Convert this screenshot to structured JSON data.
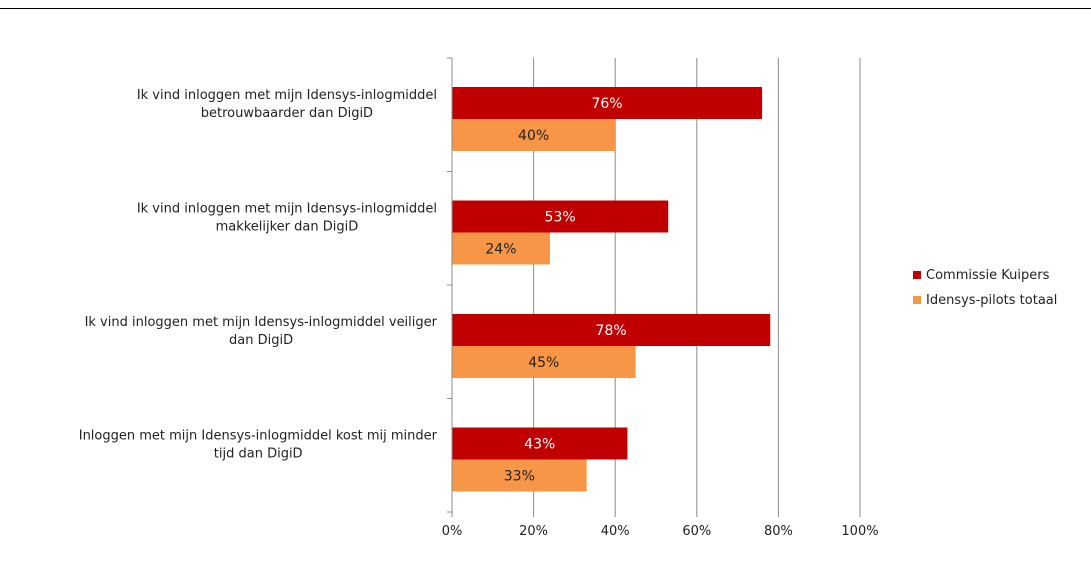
{
  "chart_data": {
    "type": "bar",
    "orientation": "horizontal",
    "categories": [
      [
        "Ik vind inloggen met mijn Idensys-inlogmiddel",
        "betrouwbaarder dan DigiD"
      ],
      [
        "Ik vind inloggen met mijn Idensys-inlogmiddel",
        "makkelijker dan DigiD"
      ],
      [
        "Ik vind inloggen met mijn Idensys-inlogmiddel veiliger",
        "dan DigiD"
      ],
      [
        "Inloggen met mijn Idensys-inlogmiddel kost mij minder",
        "tijd dan DigiD"
      ]
    ],
    "series": [
      {
        "name": "Commissie Kuipers",
        "color": "#c00000",
        "label_color": "#ffffff",
        "values": [
          76,
          53,
          78,
          43
        ],
        "labels": [
          "76%",
          "53%",
          "78%",
          "43%"
        ]
      },
      {
        "name": "Idensys-pilots totaal",
        "color": "#f79646",
        "label_color": "#222222",
        "values": [
          40,
          24,
          45,
          33
        ],
        "labels": [
          "40%",
          "24%",
          "45%",
          "33%"
        ]
      }
    ],
    "xlim": [
      0,
      100
    ],
    "x_ticks": [
      "0%",
      "20%",
      "40%",
      "60%",
      "80%",
      "100%"
    ],
    "grid": true,
    "legend": "right"
  }
}
